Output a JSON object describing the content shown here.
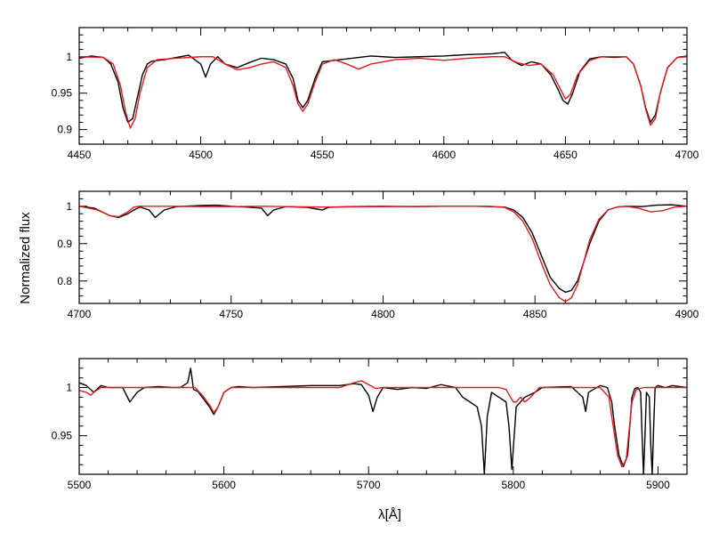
{
  "figure": {
    "ylabel": "Normalized flux",
    "xlabel": "λ[Å]",
    "observed_color": "#000000",
    "model_color": "#e41a1c"
  },
  "chart_data": [
    {
      "type": "line",
      "xlim": [
        4450,
        4700
      ],
      "ylim": [
        0.88,
        1.04
      ],
      "xticks": [
        4450,
        4500,
        4550,
        4600,
        4650,
        4700
      ],
      "yticks": [
        0.9,
        0.95,
        1
      ],
      "series": [
        {
          "role": "observed",
          "x": [
            4450,
            4455,
            4460,
            4463,
            4466,
            4468,
            4470,
            4472,
            4474,
            4476,
            4478,
            4480,
            4485,
            4490,
            4495,
            4500,
            4502,
            4504,
            4507,
            4510,
            4515,
            4520,
            4525,
            4530,
            4535,
            4538,
            4540,
            4542,
            4544,
            4547,
            4550,
            4555,
            4560,
            4565,
            4570,
            4575,
            4580,
            4590,
            4600,
            4610,
            4620,
            4625,
            4628,
            4632,
            4636,
            4640,
            4644,
            4647,
            4649,
            4651,
            4653,
            4656,
            4660,
            4665,
            4670,
            4675,
            4678,
            4681,
            4683,
            4685,
            4687,
            4689,
            4692,
            4696,
            4700
          ],
          "y": [
            0.998,
            1.001,
            0.999,
            0.99,
            0.965,
            0.93,
            0.91,
            0.915,
            0.945,
            0.975,
            0.99,
            0.994,
            0.996,
            0.999,
            1.002,
            0.99,
            0.972,
            0.99,
            1.0,
            0.99,
            0.985,
            0.992,
            0.998,
            0.996,
            0.99,
            0.97,
            0.94,
            0.93,
            0.94,
            0.97,
            0.993,
            0.995,
            0.997,
            0.999,
            1.001,
            1.0,
            0.999,
            1.0,
            1.001,
            1.003,
            1.004,
            1.006,
            0.995,
            0.988,
            0.993,
            0.99,
            0.975,
            0.955,
            0.94,
            0.935,
            0.95,
            0.98,
            0.997,
            1.0,
            0.999,
            1.0,
            0.99,
            0.96,
            0.93,
            0.91,
            0.92,
            0.95,
            0.985,
            0.999,
            1.001
          ]
        },
        {
          "role": "model",
          "x": [
            4450,
            4460,
            4464,
            4467,
            4469,
            4471,
            4473,
            4475,
            4478,
            4482,
            4490,
            4500,
            4505,
            4510,
            4515,
            4520,
            4525,
            4530,
            4535,
            4538,
            4540,
            4542,
            4544,
            4547,
            4550,
            4555,
            4560,
            4565,
            4570,
            4580,
            4590,
            4600,
            4610,
            4620,
            4625,
            4630,
            4635,
            4640,
            4645,
            4648,
            4650,
            4652,
            4655,
            4660,
            4665,
            4670,
            4675,
            4678,
            4681,
            4683,
            4685,
            4687,
            4689,
            4692,
            4696,
            4700
          ],
          "y": [
            1.0,
            0.999,
            0.99,
            0.96,
            0.925,
            0.902,
            0.915,
            0.95,
            0.985,
            0.996,
            0.998,
            1.0,
            1.0,
            0.99,
            0.982,
            0.985,
            0.99,
            0.993,
            0.985,
            0.96,
            0.935,
            0.925,
            0.935,
            0.965,
            0.99,
            0.996,
            0.99,
            0.983,
            0.99,
            0.996,
            0.998,
            0.995,
            0.998,
            1.0,
            1.0,
            0.992,
            0.988,
            0.99,
            0.975,
            0.955,
            0.942,
            0.948,
            0.975,
            0.995,
            1.0,
            1.0,
            1.0,
            0.99,
            0.96,
            0.928,
            0.906,
            0.915,
            0.95,
            0.985,
            0.999,
            1.0
          ]
        }
      ]
    },
    {
      "type": "line",
      "xlim": [
        4700,
        4900
      ],
      "ylim": [
        0.74,
        1.04
      ],
      "xticks": [
        4700,
        4750,
        4800,
        4850,
        4900
      ],
      "yticks": [
        0.8,
        0.9,
        1
      ],
      "series": [
        {
          "role": "observed",
          "x": [
            4700,
            4705,
            4710,
            4713,
            4716,
            4718,
            4720,
            4723,
            4725,
            4728,
            4732,
            4740,
            4745,
            4750,
            4755,
            4760,
            4762,
            4764,
            4768,
            4775,
            4780,
            4782,
            4785,
            4790,
            4800,
            4810,
            4820,
            4830,
            4835,
            4840,
            4843,
            4846,
            4849,
            4852,
            4855,
            4858,
            4860,
            4862,
            4864,
            4866,
            4868,
            4871,
            4874,
            4877,
            4880,
            4885,
            4890,
            4895,
            4900
          ],
          "y": [
            1.0,
            0.995,
            0.975,
            0.97,
            0.98,
            0.99,
            0.998,
            0.99,
            0.97,
            0.99,
            0.999,
            1.002,
            1.003,
            1.0,
            0.998,
            0.995,
            0.975,
            0.99,
            0.999,
            0.997,
            0.99,
            0.997,
            0.998,
            0.999,
            1.0,
            0.999,
            1.0,
            1.0,
            0.999,
            0.998,
            0.99,
            0.97,
            0.93,
            0.87,
            0.81,
            0.78,
            0.77,
            0.775,
            0.8,
            0.85,
            0.9,
            0.96,
            0.99,
            0.998,
            1.0,
            0.999,
            1.003,
            1.004,
            1.0
          ]
        },
        {
          "role": "model",
          "x": [
            4700,
            4706,
            4710,
            4713,
            4716,
            4718,
            4720,
            4730,
            4740,
            4750,
            4760,
            4780,
            4800,
            4820,
            4835,
            4840,
            4843,
            4846,
            4849,
            4852,
            4855,
            4858,
            4860,
            4862,
            4864,
            4866,
            4868,
            4871,
            4874,
            4877,
            4880,
            4884,
            4888,
            4892,
            4896,
            4900
          ],
          "y": [
            1.0,
            0.99,
            0.975,
            0.972,
            0.985,
            0.998,
            1.0,
            1.0,
            0.999,
            0.999,
            1.0,
            0.998,
            0.999,
            1.0,
            1.0,
            0.997,
            0.985,
            0.96,
            0.915,
            0.85,
            0.79,
            0.755,
            0.745,
            0.755,
            0.79,
            0.85,
            0.91,
            0.965,
            0.99,
            0.998,
            1.0,
            0.995,
            0.985,
            0.988,
            0.998,
            1.0
          ]
        }
      ]
    },
    {
      "type": "line",
      "xlim": [
        5500,
        5920
      ],
      "ylim": [
        0.91,
        1.03
      ],
      "xticks": [
        5500,
        5600,
        5700,
        5800,
        5900
      ],
      "yticks": [
        0.95,
        1
      ],
      "series": [
        {
          "role": "observed",
          "x": [
            5500,
            5505,
            5510,
            5515,
            5520,
            5530,
            5535,
            5540,
            5545,
            5555,
            5565,
            5570,
            5575,
            5577,
            5579,
            5582,
            5585,
            5590,
            5593,
            5596,
            5600,
            5605,
            5610,
            5620,
            5640,
            5660,
            5680,
            5690,
            5695,
            5700,
            5703,
            5706,
            5710,
            5720,
            5730,
            5740,
            5750,
            5760,
            5765,
            5770,
            5775,
            5778,
            5780,
            5782,
            5785,
            5790,
            5795,
            5797,
            5799,
            5802,
            5808,
            5815,
            5820,
            5840,
            5848,
            5850,
            5852,
            5860,
            5865,
            5868,
            5870,
            5873,
            5876,
            5879,
            5882,
            5884,
            5886,
            5888,
            5889,
            5890,
            5891,
            5892,
            5894,
            5895,
            5896,
            5897,
            5898,
            5900,
            5905,
            5910,
            5920
          ],
          "y": [
            1.005,
            1.002,
            0.995,
            1.002,
            1.0,
            1.0,
            0.985,
            0.995,
            1.0,
            1.001,
            1.0,
            1.0,
            1.005,
            1.02,
            0.998,
            0.996,
            0.99,
            0.98,
            0.972,
            0.98,
            0.995,
            1.0,
            1.001,
            1.0,
            1.001,
            1.002,
            1.002,
            1.004,
            1.003,
            0.992,
            0.975,
            0.99,
            1.0,
            0.998,
            1.0,
            0.999,
            1.003,
            1.0,
            0.99,
            0.985,
            0.98,
            0.96,
            0.91,
            0.97,
            0.995,
            0.99,
            0.985,
            0.96,
            0.915,
            0.98,
            0.99,
            0.995,
            1.0,
            1.001,
            0.99,
            0.975,
            0.995,
            1.002,
            1.0,
            0.985,
            0.96,
            0.93,
            0.918,
            0.93,
            0.99,
            0.999,
            1.0,
            0.995,
            0.95,
            0.91,
            0.95,
            0.995,
            0.99,
            0.94,
            0.91,
            0.96,
            1.0,
            1.002,
            1.0,
            1.002,
            1.0
          ]
        },
        {
          "role": "model",
          "x": [
            5500,
            5505,
            5508,
            5510,
            5515,
            5520,
            5560,
            5580,
            5585,
            5590,
            5593,
            5596,
            5600,
            5605,
            5610,
            5650,
            5680,
            5690,
            5695,
            5700,
            5705,
            5710,
            5750,
            5780,
            5790,
            5795,
            5798,
            5800,
            5802,
            5805,
            5808,
            5812,
            5818,
            5830,
            5860,
            5866,
            5869,
            5872,
            5875,
            5878,
            5880,
            5882,
            5885,
            5890,
            5900,
            5920
          ],
          "y": [
            0.997,
            0.995,
            0.992,
            0.995,
            1.0,
            1.0,
            1.0,
            1.0,
            0.992,
            0.982,
            0.974,
            0.98,
            0.995,
            1.0,
            1.0,
            1.0,
            1.0,
            1.005,
            1.007,
            1.003,
            0.999,
            1.0,
            1.0,
            1.0,
            1.0,
            0.998,
            0.99,
            0.985,
            0.985,
            0.99,
            0.985,
            0.99,
            1.0,
            1.0,
            1.0,
            0.99,
            0.96,
            0.93,
            0.918,
            0.925,
            0.955,
            0.985,
            0.998,
            1.0,
            1.0,
            1.0
          ]
        }
      ]
    }
  ]
}
